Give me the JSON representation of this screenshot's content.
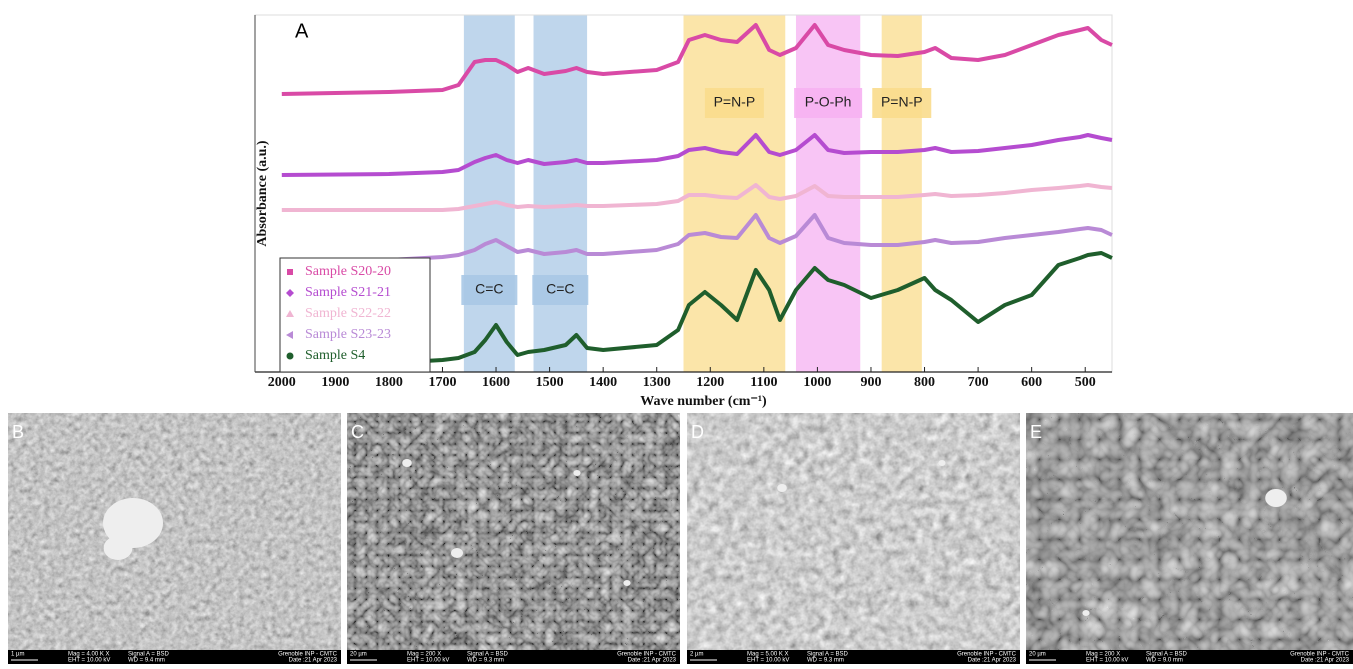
{
  "chart_data": {
    "type": "line",
    "panel_label": "A",
    "xlabel": "Wave number (cm⁻¹)",
    "ylabel": "Absorbance (a.u.)",
    "xlim": [
      2050,
      450
    ],
    "ylim": [
      0,
      357
    ],
    "xticks": [
      2000,
      1900,
      1800,
      1700,
      1600,
      1500,
      1400,
      1300,
      1200,
      1100,
      1000,
      900,
      800,
      700,
      600,
      500
    ],
    "x": [
      2000,
      1800,
      1700,
      1670,
      1640,
      1620,
      1600,
      1580,
      1560,
      1540,
      1510,
      1470,
      1450,
      1430,
      1400,
      1300,
      1260,
      1240,
      1210,
      1180,
      1150,
      1115,
      1090,
      1070,
      1040,
      1005,
      980,
      950,
      900,
      850,
      800,
      780,
      750,
      700,
      650,
      600,
      550,
      510,
      495,
      470,
      450
    ],
    "bands": [
      {
        "label": "C=C",
        "range": [
          1660,
          1565
        ],
        "color": "#a9c8e6",
        "label_pos": "low"
      },
      {
        "label": "C=C",
        "range": [
          1530,
          1430
        ],
        "color": "#a9c8e6",
        "label_pos": "low"
      },
      {
        "label": "P=N-P",
        "range": [
          1250,
          1060
        ],
        "color": "#f9dc8c",
        "label_pos": "high"
      },
      {
        "label": "P-O-Ph",
        "range": [
          1040,
          920
        ],
        "color": "#f6b1f2",
        "label_pos": "high"
      },
      {
        "label": "P=N-P",
        "range": [
          880,
          805
        ],
        "color": "#f9dc8c",
        "label_pos": "high"
      }
    ],
    "series": [
      {
        "name": "Sample S20-20",
        "color": "#d94aa6",
        "marker": "square",
        "values": [
          278,
          280,
          282,
          287,
          310,
          312,
          312,
          307,
          300,
          304,
          298,
          301,
          304,
          300,
          298,
          302,
          310,
          332,
          337,
          332,
          330,
          347,
          322,
          317,
          324,
          347,
          327,
          322,
          317,
          316,
          320,
          324,
          314,
          312,
          317,
          327,
          337,
          342,
          344,
          332,
          327
        ]
      },
      {
        "name": "Sample S21-21",
        "color": "#b54cd0",
        "marker": "diamond",
        "values": [
          197,
          198,
          200,
          202,
          210,
          214,
          217,
          212,
          209,
          212,
          208,
          210,
          212,
          209,
          209,
          212,
          216,
          222,
          224,
          220,
          218,
          237,
          220,
          217,
          222,
          237,
          222,
          219,
          220,
          220,
          222,
          224,
          220,
          221,
          224,
          227,
          232,
          235,
          237,
          234,
          232
        ]
      },
      {
        "name": "Sample S22-22",
        "color": "#f0b5d2",
        "marker": "triangle",
        "values": [
          162,
          162,
          162,
          163,
          166,
          168,
          170,
          167,
          165,
          166,
          165,
          166,
          167,
          166,
          166,
          168,
          171,
          177,
          177,
          175,
          174,
          187,
          175,
          173,
          176,
          186,
          176,
          175,
          175,
          175,
          177,
          178,
          176,
          177,
          179,
          182,
          184,
          186,
          187,
          185,
          184
        ]
      },
      {
        "name": "Sample S23-23",
        "color": "#b98ad6",
        "marker": "triangle-left",
        "values": [
          110,
          112,
          115,
          117,
          122,
          128,
          132,
          126,
          120,
          122,
          118,
          120,
          122,
          118,
          118,
          122,
          128,
          137,
          139,
          135,
          134,
          157,
          134,
          129,
          136,
          157,
          134,
          129,
          127,
          127,
          130,
          132,
          129,
          130,
          134,
          137,
          140,
          143,
          144,
          142,
          137
        ]
      },
      {
        "name": "Sample S4",
        "color": "#1f5e2c",
        "marker": "circle",
        "values": [
          7,
          9,
          12,
          14,
          20,
          32,
          47,
          30,
          17,
          20,
          22,
          27,
          37,
          24,
          22,
          27,
          42,
          67,
          80,
          67,
          52,
          102,
          82,
          52,
          82,
          104,
          92,
          87,
          74,
          82,
          94,
          82,
          72,
          50,
          67,
          77,
          107,
          114,
          117,
          119,
          114
        ]
      }
    ]
  },
  "images": [
    {
      "label": "B",
      "scale_bar": "1 µm",
      "mag": "Mag = 4.00 K X",
      "eht": "EHT = 10.00 kV",
      "signal": "Signal A = BSD",
      "wd": "WD = 9.4 mm",
      "institution": "Grenoble INP - CMTC",
      "date": "Date :21 Apr 2023"
    },
    {
      "label": "C",
      "scale_bar": "20 µm",
      "mag": "Mag = 200 X",
      "eht": "EHT = 10.00 kV",
      "signal": "Signal A = BSD",
      "wd": "WD = 9.3 mm",
      "institution": "Grenoble INP - CMTC",
      "date": "Date :21 Apr 2023"
    },
    {
      "label": "D",
      "scale_bar": "2 µm",
      "mag": "Mag = 5.00 K X",
      "eht": "EHT = 10.00 kV",
      "signal": "Signal A = BSD",
      "wd": "WD = 9.3 mm",
      "institution": "Grenoble INP - CMTC",
      "date": "Date :21 Apr 2023"
    },
    {
      "label": "E",
      "scale_bar": "20 µm",
      "mag": "Mag = 200 X",
      "eht": "EHT = 10.00 kV",
      "signal": "Signal A = BSD",
      "wd": "WD = 9.0 mm",
      "institution": "Grenoble INP - CMTC",
      "date": "Date :21 Apr 2023"
    }
  ]
}
